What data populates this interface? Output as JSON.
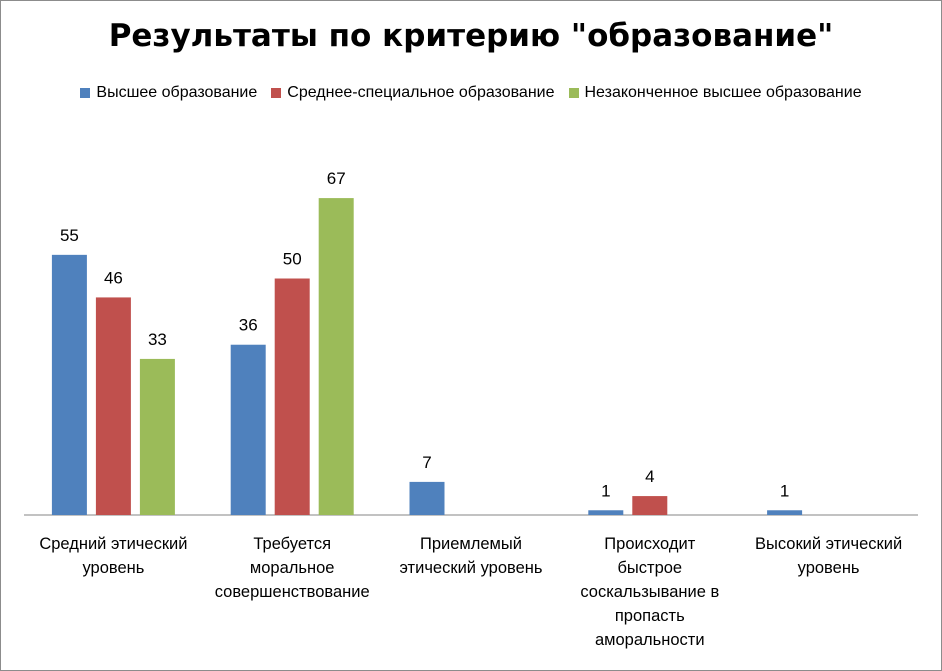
{
  "chart_data": {
    "type": "bar",
    "title": "Результаты по критерию \"образование\"",
    "categories": [
      "Средний этический уровень",
      "Требуется моральное совершенствование",
      "Приемлемый этический уровень",
      "Происходит быстрое соскальзывание в пропасть аморальности",
      "Высокий этический уровень"
    ],
    "category_lines": [
      [
        "Средний этический",
        "уровень"
      ],
      [
        "Требуется",
        "моральное",
        "совершенствование"
      ],
      [
        "Приемлемый",
        "этический уровень"
      ],
      [
        "Происходит",
        "быстрое",
        "соскальзывание в",
        "пропасть",
        "аморальности"
      ],
      [
        "Высокий этический",
        "уровень"
      ]
    ],
    "series": [
      {
        "name": "Высшее образование",
        "color": "#4f81bd",
        "values": [
          55,
          36,
          7,
          1,
          1
        ]
      },
      {
        "name": "Среднее-специальное образование",
        "color": "#c0504d",
        "values": [
          46,
          50,
          null,
          4,
          null
        ]
      },
      {
        "name": "Незаконченное высшее образование",
        "color": "#9bbb59",
        "values": [
          33,
          67,
          null,
          null,
          null
        ]
      }
    ],
    "ylim": [
      0,
      70
    ],
    "legend_position": "top",
    "grid": false,
    "data_labels": true
  }
}
